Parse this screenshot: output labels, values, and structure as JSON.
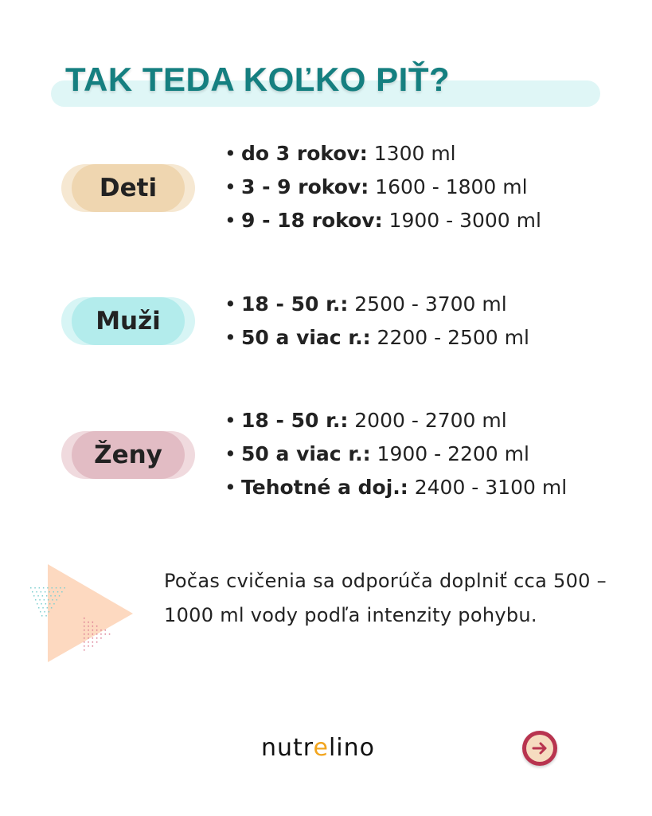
{
  "title": "TAK TEDA KOĽKO PIŤ?",
  "groups": [
    {
      "label": "Deti",
      "color": "#efd6b0",
      "items": [
        {
          "bold": "do 3 rokov:",
          "value": " 1300 ml"
        },
        {
          "bold": "3 - 9 rokov:",
          "value": " 1600 - 1800 ml"
        },
        {
          "bold": "9 - 18 rokov:",
          "value": " 1900 - 3000 ml"
        }
      ]
    },
    {
      "label": "Muži",
      "color": "#b3ecec",
      "items": [
        {
          "bold": "18 - 50 r.:",
          "value": " 2500 - 3700 ml"
        },
        {
          "bold": "50 a viac r.:",
          "value": " 2200 - 2500 ml"
        }
      ]
    },
    {
      "label": "Ženy",
      "color": "#e2bcc4",
      "items": [
        {
          "bold": "18 - 50 r.:",
          "value": " 2000 - 2700 ml"
        },
        {
          "bold": "50 a viac r.:",
          "value": " 1900 - 2200 ml"
        },
        {
          "bold": "Tehotné a doj.:",
          "value": " 2400 - 3100 ml"
        }
      ]
    }
  ],
  "note": "Počas cvičenia sa odporúča doplniť cca 500 – 1000 ml vody podľa intenzity pohybu.",
  "logo": {
    "before": "nutr",
    "accent": "e",
    "after": "lino"
  },
  "next_icon": "arrow-right-circle-icon"
}
